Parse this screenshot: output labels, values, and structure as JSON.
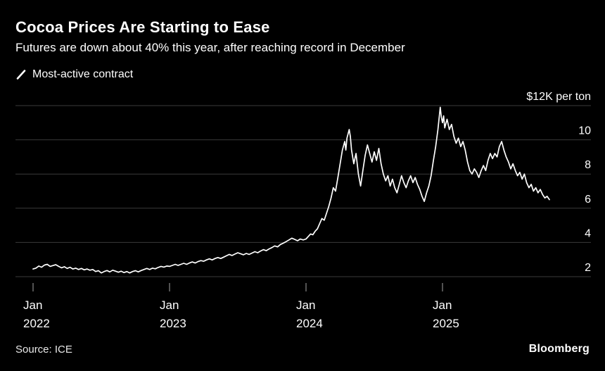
{
  "header": {
    "title": "Cocoa Prices Are Starting to Ease",
    "subtitle": "Futures are down about 40% this year, after reaching record in December"
  },
  "legend": {
    "label": "Most-active contract",
    "mark_icon": "diagonal-line-mark",
    "mark_color": "#ffffff"
  },
  "footer": {
    "source": "Source: ICE",
    "brand": "Bloomberg"
  },
  "colors": {
    "background": "#000000",
    "line": "#ffffff",
    "gridline": "#3a3a3a",
    "tick": "#888888",
    "axis_text": "#ffffff"
  },
  "chart_data": {
    "type": "line",
    "title": "Cocoa Prices Are Starting to Ease",
    "subtitle": "Futures are down about 40% this year, after reaching record in December",
    "xlabel": "",
    "ylabel": "$K per ton",
    "ylim": [
      2,
      12
    ],
    "grid": "horizontal",
    "legend_position": "top-left",
    "y_axis": {
      "ticks": [
        2,
        4,
        6,
        8,
        10,
        12
      ],
      "top_label": "$12K per ton"
    },
    "x_axis": {
      "unit": "months since Jan 2022",
      "ticks": [
        {
          "month": 0,
          "top": "Jan",
          "bottom": "2022"
        },
        {
          "month": 12,
          "top": "Jan",
          "bottom": "2023"
        },
        {
          "month": 24,
          "top": "Jan",
          "bottom": "2024"
        },
        {
          "month": 36,
          "top": "Jan",
          "bottom": "2025"
        }
      ],
      "range_months": [
        0,
        46
      ]
    },
    "series": [
      {
        "name": "Most-active contract",
        "color": "#ffffff",
        "points": [
          [
            0,
            2.45
          ],
          [
            0.25,
            2.5
          ],
          [
            0.5,
            2.62
          ],
          [
            0.75,
            2.55
          ],
          [
            1,
            2.68
          ],
          [
            1.25,
            2.72
          ],
          [
            1.5,
            2.6
          ],
          [
            1.75,
            2.65
          ],
          [
            2,
            2.7
          ],
          [
            2.25,
            2.6
          ],
          [
            2.5,
            2.52
          ],
          [
            2.75,
            2.58
          ],
          [
            3,
            2.48
          ],
          [
            3.25,
            2.55
          ],
          [
            3.5,
            2.45
          ],
          [
            3.75,
            2.5
          ],
          [
            4,
            2.42
          ],
          [
            4.25,
            2.48
          ],
          [
            4.5,
            2.4
          ],
          [
            4.75,
            2.45
          ],
          [
            5,
            2.38
          ],
          [
            5.25,
            2.42
          ],
          [
            5.5,
            2.3
          ],
          [
            5.75,
            2.35
          ],
          [
            6,
            2.22
          ],
          [
            6.25,
            2.3
          ],
          [
            6.5,
            2.36
          ],
          [
            6.75,
            2.28
          ],
          [
            7,
            2.38
          ],
          [
            7.25,
            2.32
          ],
          [
            7.5,
            2.26
          ],
          [
            7.75,
            2.32
          ],
          [
            8,
            2.24
          ],
          [
            8.25,
            2.3
          ],
          [
            8.5,
            2.22
          ],
          [
            8.75,
            2.3
          ],
          [
            9,
            2.35
          ],
          [
            9.25,
            2.28
          ],
          [
            9.5,
            2.36
          ],
          [
            9.75,
            2.42
          ],
          [
            10,
            2.48
          ],
          [
            10.25,
            2.42
          ],
          [
            10.5,
            2.5
          ],
          [
            10.75,
            2.46
          ],
          [
            11,
            2.54
          ],
          [
            11.25,
            2.6
          ],
          [
            11.5,
            2.56
          ],
          [
            11.75,
            2.62
          ],
          [
            12,
            2.6
          ],
          [
            12.25,
            2.66
          ],
          [
            12.5,
            2.72
          ],
          [
            12.75,
            2.66
          ],
          [
            13,
            2.72
          ],
          [
            13.25,
            2.78
          ],
          [
            13.5,
            2.72
          ],
          [
            13.75,
            2.8
          ],
          [
            14,
            2.86
          ],
          [
            14.25,
            2.8
          ],
          [
            14.5,
            2.88
          ],
          [
            14.75,
            2.94
          ],
          [
            15,
            2.9
          ],
          [
            15.25,
            2.98
          ],
          [
            15.5,
            3.04
          ],
          [
            15.75,
            2.98
          ],
          [
            16,
            3.06
          ],
          [
            16.25,
            3.12
          ],
          [
            16.5,
            3.06
          ],
          [
            16.75,
            3.14
          ],
          [
            17,
            3.22
          ],
          [
            17.25,
            3.3
          ],
          [
            17.5,
            3.24
          ],
          [
            17.75,
            3.32
          ],
          [
            18,
            3.4
          ],
          [
            18.25,
            3.34
          ],
          [
            18.5,
            3.28
          ],
          [
            18.75,
            3.36
          ],
          [
            19,
            3.3
          ],
          [
            19.25,
            3.38
          ],
          [
            19.5,
            3.46
          ],
          [
            19.75,
            3.4
          ],
          [
            20,
            3.5
          ],
          [
            20.25,
            3.58
          ],
          [
            20.5,
            3.52
          ],
          [
            20.75,
            3.62
          ],
          [
            21,
            3.7
          ],
          [
            21.25,
            3.8
          ],
          [
            21.5,
            3.74
          ],
          [
            21.75,
            3.88
          ],
          [
            22,
            3.96
          ],
          [
            22.25,
            4.05
          ],
          [
            22.5,
            4.15
          ],
          [
            22.75,
            4.25
          ],
          [
            23,
            4.18
          ],
          [
            23.25,
            4.1
          ],
          [
            23.5,
            4.2
          ],
          [
            23.75,
            4.15
          ],
          [
            24,
            4.2
          ],
          [
            24.2,
            4.35
          ],
          [
            24.4,
            4.5
          ],
          [
            24.6,
            4.45
          ],
          [
            24.8,
            4.65
          ],
          [
            25,
            4.8
          ],
          [
            25.2,
            5.1
          ],
          [
            25.4,
            5.4
          ],
          [
            25.6,
            5.3
          ],
          [
            25.8,
            5.7
          ],
          [
            26,
            6.1
          ],
          [
            26.2,
            6.6
          ],
          [
            26.4,
            7.2
          ],
          [
            26.6,
            7.0
          ],
          [
            26.8,
            7.8
          ],
          [
            27,
            8.6
          ],
          [
            27.2,
            9.4
          ],
          [
            27.4,
            9.9
          ],
          [
            27.5,
            9.4
          ],
          [
            27.6,
            10.1
          ],
          [
            27.8,
            10.6
          ],
          [
            27.9,
            10.2
          ],
          [
            28,
            9.4
          ],
          [
            28.2,
            8.6
          ],
          [
            28.4,
            9.2
          ],
          [
            28.6,
            8.0
          ],
          [
            28.8,
            7.3
          ],
          [
            29,
            8.2
          ],
          [
            29.2,
            9.1
          ],
          [
            29.4,
            9.7
          ],
          [
            29.6,
            9.2
          ],
          [
            29.8,
            8.7
          ],
          [
            30,
            9.3
          ],
          [
            30.2,
            8.8
          ],
          [
            30.4,
            9.5
          ],
          [
            30.6,
            8.6
          ],
          [
            30.8,
            8.0
          ],
          [
            31,
            7.6
          ],
          [
            31.2,
            7.9
          ],
          [
            31.4,
            7.3
          ],
          [
            31.6,
            7.7
          ],
          [
            31.8,
            7.2
          ],
          [
            32,
            6.9
          ],
          [
            32.2,
            7.4
          ],
          [
            32.4,
            7.9
          ],
          [
            32.6,
            7.5
          ],
          [
            32.8,
            7.2
          ],
          [
            33,
            7.6
          ],
          [
            33.2,
            7.9
          ],
          [
            33.4,
            7.5
          ],
          [
            33.6,
            7.8
          ],
          [
            33.8,
            7.4
          ],
          [
            34,
            7.1
          ],
          [
            34.2,
            6.7
          ],
          [
            34.4,
            6.4
          ],
          [
            34.6,
            6.9
          ],
          [
            34.8,
            7.3
          ],
          [
            35,
            7.9
          ],
          [
            35.2,
            8.8
          ],
          [
            35.4,
            9.6
          ],
          [
            35.6,
            10.6
          ],
          [
            35.8,
            11.9
          ],
          [
            35.9,
            11.3
          ],
          [
            36,
            11.0
          ],
          [
            36.1,
            11.4
          ],
          [
            36.2,
            10.7
          ],
          [
            36.4,
            11.2
          ],
          [
            36.6,
            10.6
          ],
          [
            36.8,
            10.9
          ],
          [
            37,
            10.2
          ],
          [
            37.2,
            9.8
          ],
          [
            37.4,
            10.1
          ],
          [
            37.6,
            9.6
          ],
          [
            37.8,
            9.9
          ],
          [
            38,
            9.4
          ],
          [
            38.2,
            8.7
          ],
          [
            38.4,
            8.2
          ],
          [
            38.6,
            8.0
          ],
          [
            38.8,
            8.3
          ],
          [
            39,
            8.1
          ],
          [
            39.2,
            7.8
          ],
          [
            39.4,
            8.2
          ],
          [
            39.6,
            8.5
          ],
          [
            39.8,
            8.2
          ],
          [
            40,
            8.8
          ],
          [
            40.2,
            9.2
          ],
          [
            40.4,
            8.9
          ],
          [
            40.6,
            9.2
          ],
          [
            40.8,
            9.0
          ],
          [
            41,
            9.6
          ],
          [
            41.2,
            9.9
          ],
          [
            41.4,
            9.4
          ],
          [
            41.6,
            9.0
          ],
          [
            41.8,
            8.7
          ],
          [
            42,
            8.3
          ],
          [
            42.2,
            8.6
          ],
          [
            42.4,
            8.2
          ],
          [
            42.6,
            7.9
          ],
          [
            42.8,
            8.1
          ],
          [
            43,
            7.7
          ],
          [
            43.2,
            8.0
          ],
          [
            43.4,
            7.5
          ],
          [
            43.6,
            7.2
          ],
          [
            43.8,
            7.4
          ],
          [
            44,
            7.0
          ],
          [
            44.2,
            7.2
          ],
          [
            44.4,
            6.9
          ],
          [
            44.6,
            7.1
          ],
          [
            44.8,
            6.8
          ],
          [
            45,
            6.6
          ],
          [
            45.2,
            6.7
          ],
          [
            45.4,
            6.5
          ]
        ]
      }
    ]
  }
}
